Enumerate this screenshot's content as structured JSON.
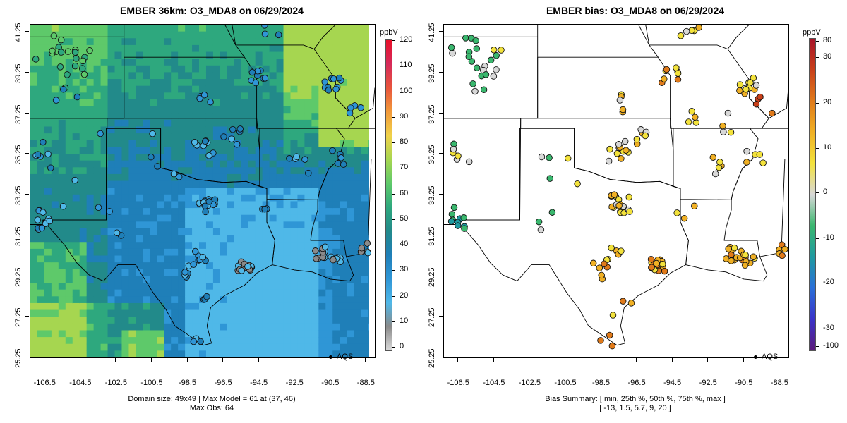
{
  "left": {
    "title": "EMBER 36km: O3_MDA8 on 06/29/2024",
    "colorbar_title": "ppbV",
    "colorbar_labels": [
      "120",
      "110",
      "100",
      "90",
      "80",
      "70",
      "60",
      "50",
      "40",
      "30",
      "20",
      "10",
      "0"
    ],
    "footer_line1": "Domain size: 49x49 | Max Model = 61 at (37, 46)",
    "footer_line2": "Max Obs: 64",
    "legend": "AQS",
    "colors": [
      "#d9d9d9",
      "#8a8a8a",
      "#4fb8e8",
      "#2f96d6",
      "#1f7fb8",
      "#228a8a",
      "#2ea87e",
      "#5ec96a",
      "#a6d650",
      "#f0d24a",
      "#f29a3a",
      "#e8553c",
      "#d62a5a",
      "#e8102a"
    ]
  },
  "right": {
    "title": "EMBER bias: O3_MDA8 on 06/29/2024",
    "colorbar_title": "ppbV",
    "colorbar_labels": [
      "80",
      "30",
      "20",
      "10",
      "0",
      "-10",
      "-20",
      "-30",
      "-100"
    ],
    "footer_line1": "Bias Summary: [ min, 25th %, 50th %, 75th %, max ]",
    "footer_line2": "[ -13,   1.5,   5.7,   9,   20 ]",
    "legend": "AQS",
    "colors": [
      "#5b1a7a",
      "#3a33c9",
      "#2a6fd8",
      "#1f9aa0",
      "#3ab76e",
      "#d8d8d8",
      "#f3e23c",
      "#f0b024",
      "#e07a1a",
      "#c8401a",
      "#a8142a"
    ]
  },
  "axes": {
    "x_ticks": [
      "-106.5",
      "-104.5",
      "-102.5",
      "-100.5",
      "-98.5",
      "-96.5",
      "-94.5",
      "-92.5",
      "-90.5",
      "-88.5"
    ],
    "y_ticks": [
      "41.25",
      "39.25",
      "37.25",
      "35.25",
      "33.25",
      "31.25",
      "29.25",
      "27.25",
      "25.25"
    ]
  }
}
